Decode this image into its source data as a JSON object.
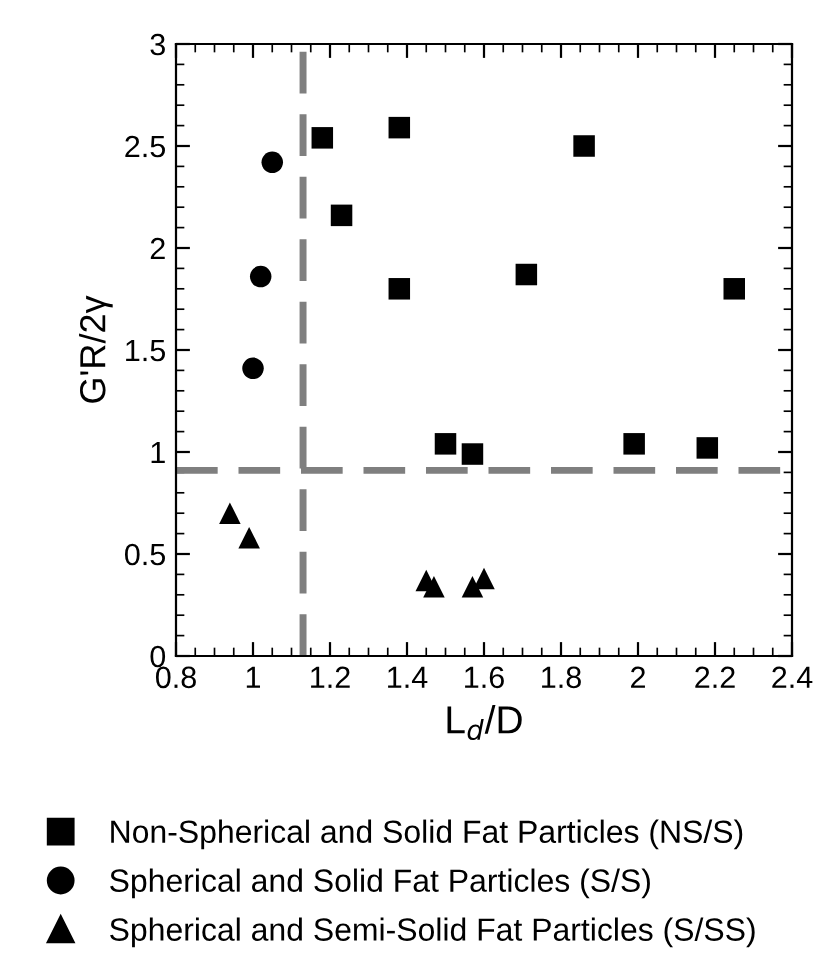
{
  "chart_data": {
    "type": "scatter",
    "xlabel": "L$_{d}$/D",
    "ylabel": "G'R/2γ",
    "xlim": [
      0.8,
      2.4
    ],
    "xticks": [
      0.8,
      1,
      1.2,
      1.4,
      1.6,
      1.8,
      2,
      2.2,
      2.4
    ],
    "ylim": [
      0,
      3
    ],
    "yticks": [
      0,
      0.5,
      1,
      1.5,
      2,
      2.5,
      3
    ],
    "grid": false,
    "legend": "bottom",
    "series": [
      {
        "name": "Non-Spherical and Solid Fat Particles (NS/S)",
        "color": "#000000",
        "marker": "square",
        "x": [
          1.18,
          1.38,
          1.86,
          1.23,
          1.38,
          1.71,
          2.25,
          1.5,
          1.57,
          1.99,
          2.18
        ],
        "values": [
          2.54,
          2.59,
          2.5,
          2.16,
          1.8,
          1.87,
          1.8,
          1.04,
          0.99,
          1.04,
          1.02
        ]
      },
      {
        "name": "Spherical and Solid Fat Particles (S/S)",
        "color": "#000000",
        "marker": "circle",
        "x": [
          1.05,
          1.02,
          1.0
        ],
        "values": [
          2.42,
          1.86,
          1.41
        ]
      },
      {
        "name": "Spherical and Semi-Solid Fat Particles (S/SS)",
        "color": "#000000",
        "marker": "triangle",
        "x": [
          0.94,
          0.99,
          1.45,
          1.47,
          1.57,
          1.6
        ],
        "values": [
          0.7,
          0.58,
          0.37,
          0.34,
          0.34,
          0.38
        ]
      }
    ],
    "ref_lines": [
      {
        "axis": "x",
        "value": 1.13,
        "color": "#7f7f7f",
        "line_style": "dashed"
      },
      {
        "axis": "y",
        "value": 0.91,
        "color": "#7f7f7f",
        "line_style": "dashed"
      }
    ]
  }
}
